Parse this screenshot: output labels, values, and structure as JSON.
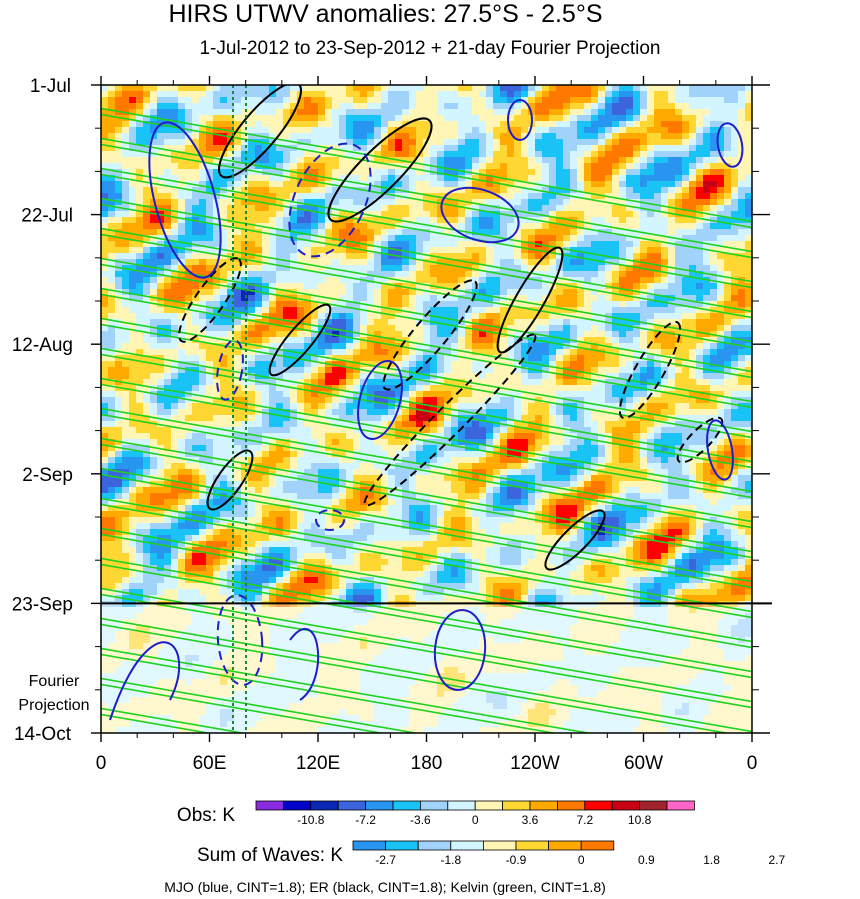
{
  "chart_data": {
    "type": "heatmap",
    "title": "HIRS UTWV anomalies: 27.5°S - 2.5°S",
    "subtitle": "1-Jul-2012 to 23-Sep-2012 + 21-day Fourier Projection",
    "x_axis": {
      "ticks": [
        "0",
        "60E",
        "120E",
        "180",
        "120W",
        "60W",
        "0"
      ],
      "range_deg_east": [
        0,
        360
      ]
    },
    "y_axis": {
      "ticks": [
        "1-Jul",
        "22-Jul",
        "12-Aug",
        "2-Sep",
        "23-Sep",
        "14-Oct"
      ],
      "range": [
        "2012-07-01",
        "2012-10-14"
      ],
      "reversed": true
    },
    "obs_end_date": "2012-09-23",
    "projection_label_line1": "Fourier",
    "projection_label_line2": "Projection",
    "obs_colorbar": {
      "label": "Obs: K",
      "tick_labels": [
        "-10.8",
        "-7.2",
        "-3.6",
        "0",
        "3.6",
        "7.2",
        "10.8"
      ],
      "colors": [
        "#8a2be2",
        "#0000c8",
        "#0a28b4",
        "#3c64dc",
        "#2896f0",
        "#19c3f5",
        "#a0d2fa",
        "#d2f5ff",
        "#fff5b4",
        "#ffd732",
        "#ffaa00",
        "#ff7800",
        "#ff0000",
        "#c80014",
        "#a0232d",
        "#ff64c8"
      ]
    },
    "waves_colorbar": {
      "label": "Sum of Waves: K",
      "tick_labels": [
        "-2.7",
        "-1.8",
        "-0.9",
        "0",
        "0.9",
        "1.8",
        "2.7"
      ],
      "colors": [
        "#2896f0",
        "#19c3f5",
        "#a0d2fa",
        "#d2f5ff",
        "#fff5b4",
        "#ffd732",
        "#ffaa00",
        "#ff7800"
      ]
    },
    "contour_legend": "MJO (blue, CINT=1.8); ER (black, CINT=1.8); Kelvin (green, CINT=1.8)",
    "series": [
      {
        "name": "MJO",
        "color": "#1e1ec8"
      },
      {
        "name": "ER",
        "color": "#000000"
      },
      {
        "name": "Kelvin",
        "color": "#1ed21e"
      }
    ]
  }
}
